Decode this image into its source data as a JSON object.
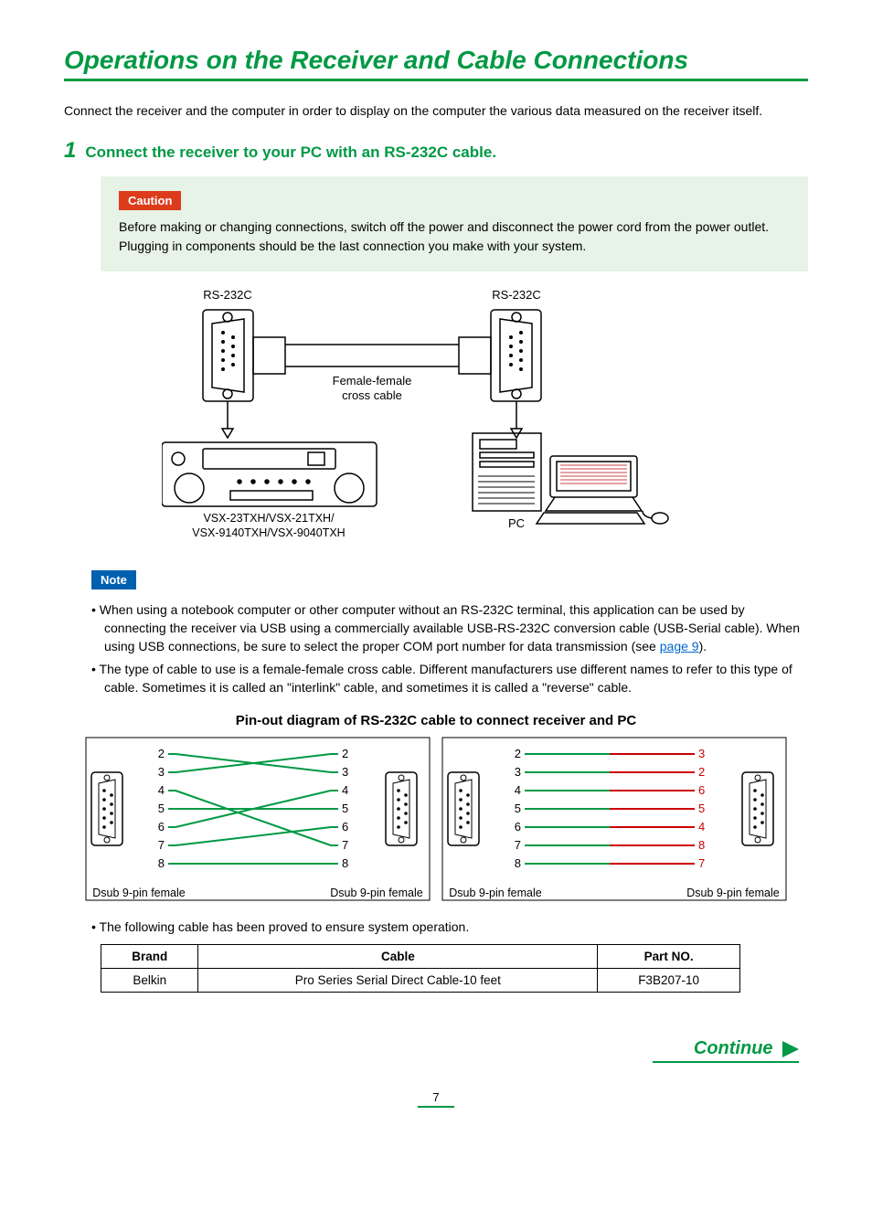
{
  "title": "Operations on the Receiver and Cable Connections",
  "title_color": "#009944",
  "intro": "Connect the receiver and the computer in order to display on the computer the various data measured on the receiver itself.",
  "step": {
    "num": "1",
    "text": "Connect the receiver to your PC with an RS-232C cable."
  },
  "caution": {
    "label": "Caution",
    "bg": "#dc3b1c",
    "box_bg": "#e6f3e6",
    "text": "Before making or changing connections, switch off the power and disconnect the power cord from the power outlet. Plugging in components should be the last connection you make with your system."
  },
  "connection_diagram": {
    "rs232_label_left": "RS-232C",
    "rs232_label_right": "RS-232C",
    "cable_label_top": "Female-female",
    "cable_label_bottom": "cross cable",
    "device_label_top": "VSX-23TXH/VSX-21TXH/",
    "device_label_bottom": "VSX-9140TXH/VSX-9040TXH",
    "pc_label": "PC",
    "line_color": "#000000"
  },
  "note": {
    "label": "Note",
    "bg": "#0060b0",
    "bullet1_pre": "When using a notebook computer or other computer without an RS-232C terminal, this application can be used by connecting the receiver via USB using a commercially available USB-RS-232C conversion cable (USB-Serial cable). When using USB connections, be sure to select the proper COM port number for data transmission (see ",
    "bullet1_link": "page 9",
    "bullet1_post": ").",
    "bullet2": "The type of cable to use is a female-female cross cable. Different manufacturers use different names to refer to this type of cable. Sometimes it is called an \"interlink\" cable, and sometimes it is called a \"reverse\" cable."
  },
  "pinout": {
    "title": "Pin-out diagram of RS-232C cable to connect receiver and PC",
    "connector_label": "Dsub 9-pin female",
    "left": {
      "pins_left": [
        "2",
        "3",
        "4",
        "5",
        "6",
        "7",
        "8"
      ],
      "pins_right": [
        "2",
        "3",
        "4",
        "5",
        "6",
        "7",
        "8"
      ],
      "pairs": [
        [
          0,
          1
        ],
        [
          1,
          0
        ],
        [
          2,
          5
        ],
        [
          3,
          3
        ],
        [
          4,
          2
        ],
        [
          5,
          4
        ],
        [
          6,
          6
        ]
      ],
      "line_color": "#009944"
    },
    "right": {
      "pins_left": [
        "2",
        "3",
        "4",
        "5",
        "6",
        "7",
        "8"
      ],
      "pins_right": [
        "3",
        "2",
        "6",
        "5",
        "4",
        "8",
        "7"
      ],
      "line_color_left": "#009944",
      "line_color_right": "#cc0000"
    }
  },
  "cable_table": {
    "intro": "The following cable has been proved to ensure system operation.",
    "headers": [
      "Brand",
      "Cable",
      "Part NO."
    ],
    "row": [
      "Belkin",
      "Pro Series Serial Direct Cable-10 feet",
      "F3B207-10"
    ]
  },
  "continue_label": "Continue",
  "page_number": "7"
}
